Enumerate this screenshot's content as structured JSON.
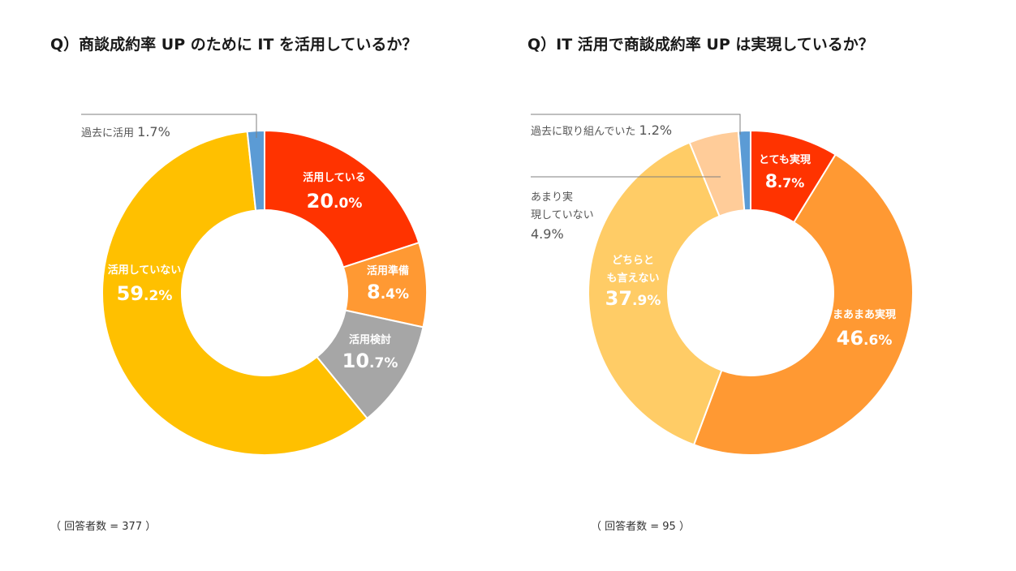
{
  "chart_data": [
    {
      "type": "pie",
      "title": "Q）商談成約率 UP のために IT を活用しているか？",
      "note": "（ 回答者数 = 377 ）",
      "categories": [
        "活用している",
        "活用準備",
        "活用検討",
        "活用していない",
        "過去に活用"
      ],
      "values": [
        20.0,
        8.4,
        10.7,
        59.2,
        1.7
      ],
      "value_labels": [
        "20.0%",
        "8.4%",
        "10.7%",
        "59.2%",
        "1.7%"
      ],
      "colors": [
        "#ff3300",
        "#ff9933",
        "#a6a6a6",
        "#ffc000",
        "#5b9bd5"
      ],
      "legend": "none"
    },
    {
      "type": "pie",
      "title": "Q）IT 活用で商談成約率 UP は実現しているか？",
      "note": "（ 回答者数 = 95 ）",
      "categories": [
        "とても実現",
        "まあまあ実現",
        "どちらとも言えない",
        "あまり実現していない",
        "過去に取り組んでいた"
      ],
      "values": [
        8.7,
        46.6,
        37.9,
        4.9,
        1.2
      ],
      "value_labels": [
        "8.7%",
        "46.6%",
        "37.9%",
        "4.9%",
        "1.2%"
      ],
      "colors": [
        "#ff3300",
        "#ff9933",
        "#ffcc66",
        "#ffcc99",
        "#5b9bd5"
      ],
      "legend": "none"
    }
  ]
}
